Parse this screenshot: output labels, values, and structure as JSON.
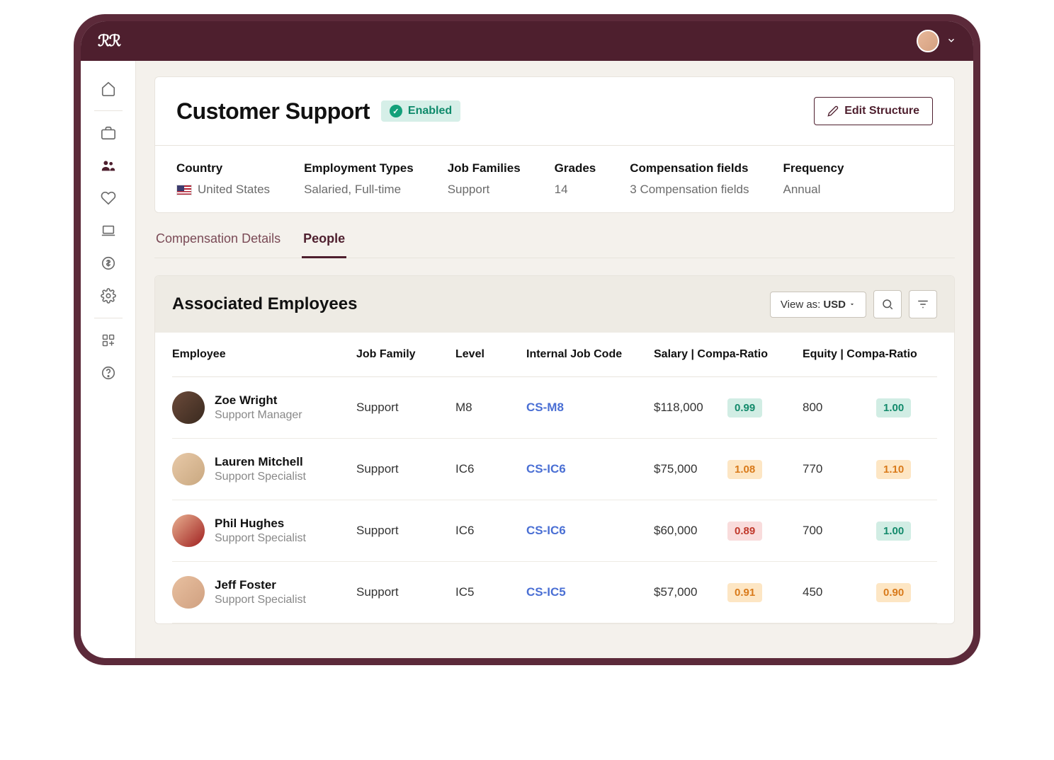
{
  "colors": {
    "frame": "#5c2a3a",
    "topbar": "#4e1f2e",
    "bg": "#f4f1ec",
    "border": "#e8e4dd",
    "accent": "#4e1f2e",
    "link": "#4a6fd4",
    "ratio_teal_bg": "#d1ede4",
    "ratio_teal_fg": "#138a6b",
    "ratio_orange_bg": "#fde6c4",
    "ratio_orange_fg": "#d97a1a",
    "ratio_red_bg": "#f9dcdc",
    "ratio_red_fg": "#c0392b"
  },
  "header": {
    "title": "Customer Support",
    "status_label": "Enabled",
    "edit_button": "Edit Structure"
  },
  "meta": {
    "country_label": "Country",
    "country_value": "United States",
    "employment_label": "Employment Types",
    "employment_value": "Salaried, Full-time",
    "families_label": "Job Families",
    "families_value": "Support",
    "grades_label": "Grades",
    "grades_value": "14",
    "compfields_label": "Compensation fields",
    "compfields_value": "3 Compensation fields",
    "frequency_label": "Frequency",
    "frequency_value": "Annual"
  },
  "tabs": {
    "details": "Compensation Details",
    "people": "People"
  },
  "table": {
    "title": "Associated Employees",
    "view_as_label": "View as:",
    "view_as_value": "USD",
    "columns": {
      "employee": "Employee",
      "job_family": "Job Family",
      "level": "Level",
      "job_code": "Internal Job Code",
      "salary": "Salary | Compa-Ratio",
      "equity": "Equity | Compa-Ratio"
    },
    "rows": [
      {
        "name": "Zoe Wright",
        "role": "Support Manager",
        "avatar_bg": "linear-gradient(135deg,#6b4a3a,#3a2a1f)",
        "job_family": "Support",
        "level": "M8",
        "job_code": "CS-M8",
        "salary": "$118,000",
        "salary_ratio": "0.99",
        "salary_ratio_style": "teal",
        "equity": "800",
        "equity_ratio": "1.00",
        "equity_ratio_style": "teal"
      },
      {
        "name": "Lauren Mitchell",
        "role": "Support Specialist",
        "avatar_bg": "linear-gradient(135deg,#e8c9a8,#c9a880)",
        "job_family": "Support",
        "level": "IC6",
        "job_code": "CS-IC6",
        "salary": "$75,000",
        "salary_ratio": "1.08",
        "salary_ratio_style": "orange",
        "equity": "770",
        "equity_ratio": "1.10",
        "equity_ratio_style": "orange"
      },
      {
        "name": "Phil Hughes",
        "role": "Support Specialist",
        "avatar_bg": "linear-gradient(135deg,#e8b090,#a02020)",
        "job_family": "Support",
        "level": "IC6",
        "job_code": "CS-IC6",
        "salary": "$60,000",
        "salary_ratio": "0.89",
        "salary_ratio_style": "red",
        "equity": "700",
        "equity_ratio": "1.00",
        "equity_ratio_style": "teal"
      },
      {
        "name": "Jeff Foster",
        "role": "Support Specialist",
        "avatar_bg": "linear-gradient(135deg,#e8c0a0,#d0a080)",
        "job_family": "Support",
        "level": "IC5",
        "job_code": "CS-IC5",
        "salary": "$57,000",
        "salary_ratio": "0.91",
        "salary_ratio_style": "orange",
        "equity": "450",
        "equity_ratio": "0.90",
        "equity_ratio_style": "orange"
      }
    ]
  }
}
